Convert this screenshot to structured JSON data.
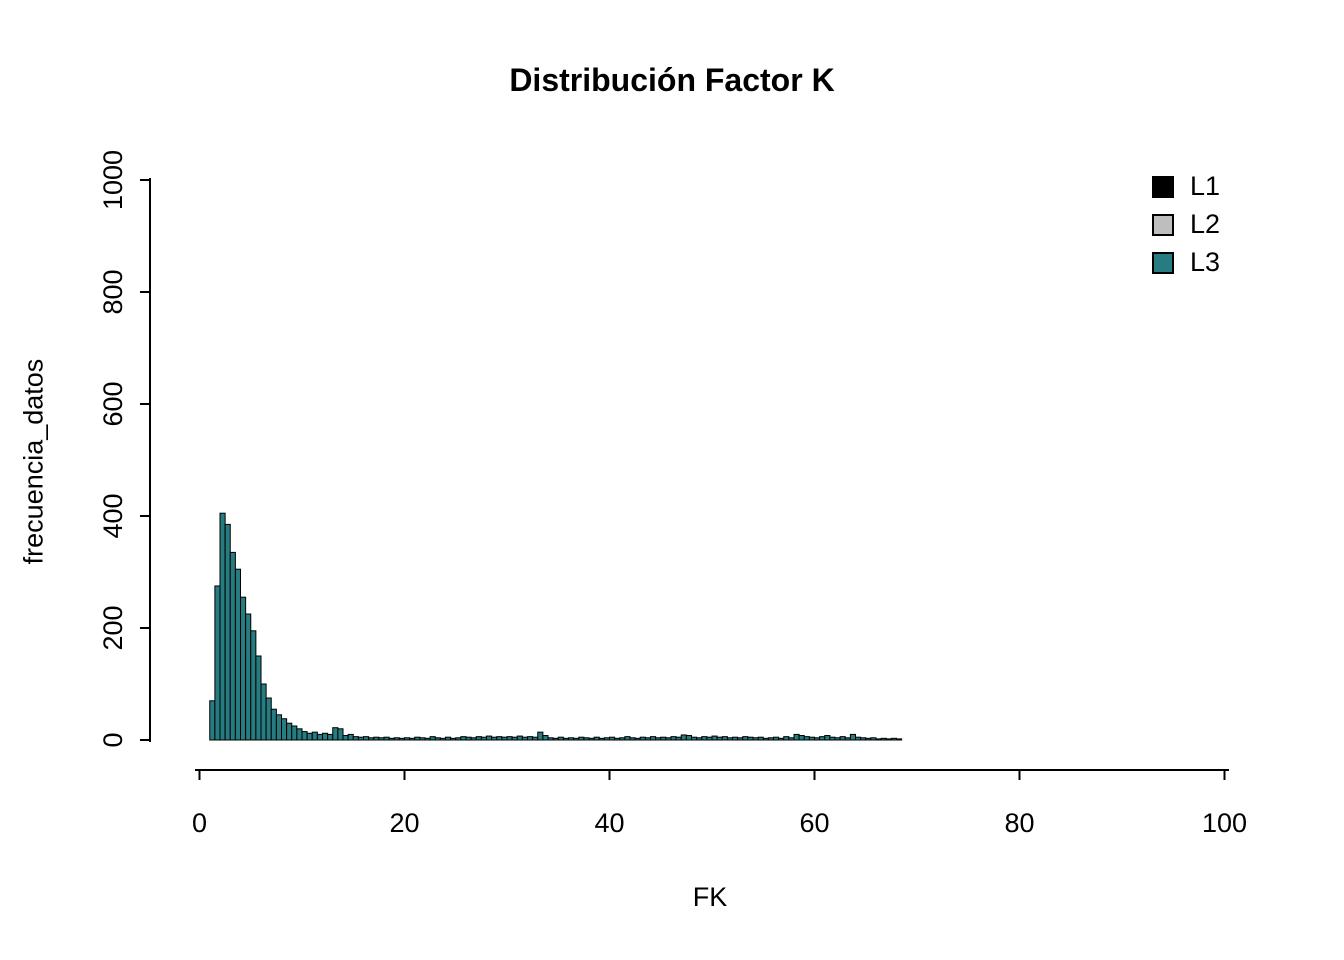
{
  "title": "Distribución Factor K",
  "x_axis": {
    "label": "FK",
    "ticks": [
      0,
      20,
      40,
      60,
      80,
      100
    ]
  },
  "y_axis": {
    "label": "frecuencia_datos",
    "ticks": [
      0,
      200,
      400,
      600,
      800,
      1000
    ]
  },
  "legend": {
    "items": [
      {
        "label": "L1",
        "color": "#000000"
      },
      {
        "label": "L2",
        "color": "#bebebe"
      },
      {
        "label": "L3",
        "color": "#267c80"
      }
    ]
  },
  "colors": {
    "bar_fill": "#267c80",
    "bar_stroke": "#000000",
    "axis": "#000000",
    "background": "#ffffff"
  },
  "chart_data": {
    "type": "bar",
    "subtype": "histogram",
    "title": "Distribución Factor K",
    "xlabel": "FK",
    "ylabel": "frecuencia_datos",
    "xlim": [
      0,
      100
    ],
    "ylim": [
      0,
      1000
    ],
    "grid": false,
    "legend_position": "top-right",
    "legend_entries": [
      "L1",
      "L2",
      "L3"
    ],
    "visible_series": "L3",
    "bin_start": 1.0,
    "bin_width": 0.5,
    "values": [
      70,
      275,
      405,
      385,
      335,
      305,
      255,
      225,
      195,
      150,
      100,
      75,
      55,
      45,
      38,
      30,
      25,
      20,
      15,
      12,
      14,
      10,
      12,
      10,
      22,
      20,
      8,
      10,
      6,
      5,
      6,
      4,
      5,
      4,
      5,
      3,
      4,
      3,
      4,
      3,
      5,
      4,
      3,
      6,
      4,
      3,
      5,
      3,
      4,
      6,
      5,
      4,
      6,
      5,
      7,
      5,
      6,
      5,
      6,
      5,
      7,
      5,
      6,
      5,
      14,
      8,
      4,
      3,
      5,
      3,
      4,
      3,
      5,
      4,
      3,
      5,
      3,
      4,
      5,
      3,
      4,
      6,
      4,
      3,
      5,
      4,
      6,
      4,
      5,
      4,
      6,
      5,
      9,
      8,
      5,
      4,
      6,
      5,
      7,
      5,
      6,
      4,
      5,
      4,
      6,
      5,
      4,
      5,
      3,
      4,
      5,
      3,
      6,
      4,
      10,
      8,
      6,
      5,
      4,
      6,
      8,
      5,
      4,
      6,
      4,
      10,
      5,
      4,
      3,
      4,
      2,
      3,
      2,
      3,
      2
    ]
  }
}
